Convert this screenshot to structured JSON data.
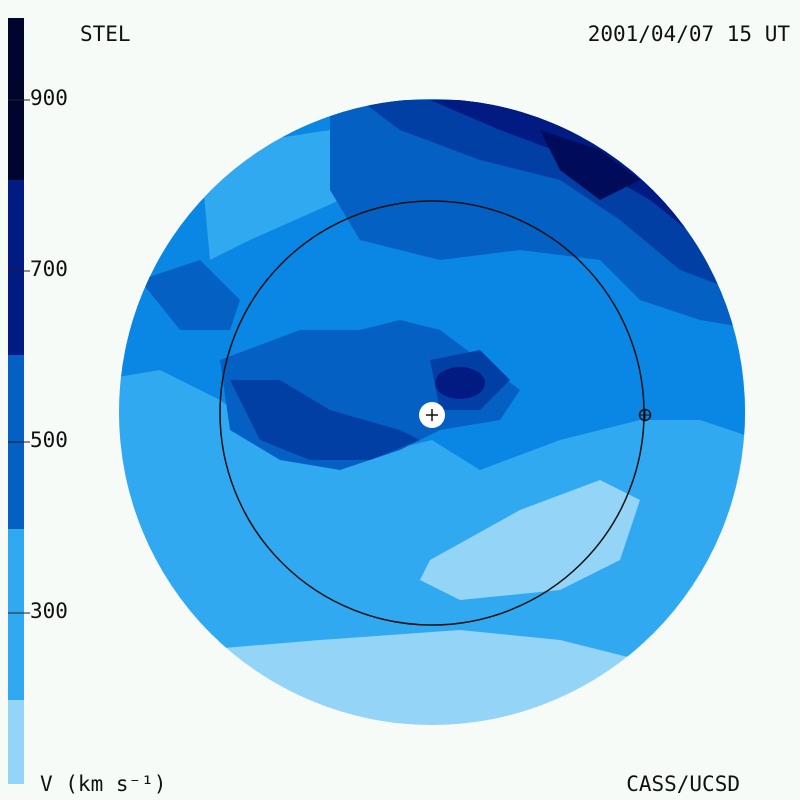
{
  "header": {
    "left_label": "STEL",
    "right_label": "2001/04/07 15 UT"
  },
  "footer": {
    "left_label": "V (km s⁻¹)",
    "right_label": "CASS/UCSD"
  },
  "colorbar": {
    "tick_labels": [
      "900",
      "700",
      "500",
      "300"
    ],
    "bands": [
      {
        "range": [
          200,
          300
        ],
        "color": "#94d4f7"
      },
      {
        "range": [
          300,
          400
        ],
        "color": "#30a9f0"
      },
      {
        "range": [
          400,
          500
        ],
        "color": "#0a86e4"
      },
      {
        "range": [
          500,
          600
        ],
        "color": "#0560c4"
      },
      {
        "range": [
          600,
          700
        ],
        "color": "#023fa5"
      },
      {
        "range": [
          700,
          800
        ],
        "color": "#011b83"
      },
      {
        "range": [
          800,
          900
        ],
        "color": "#000c5a"
      },
      {
        "range": [
          900,
          1000
        ],
        "color": "#00052d"
      }
    ]
  },
  "map": {
    "background_color": "#f6fbf8",
    "markers": [
      "sun-marker",
      "earth-marker"
    ]
  }
}
